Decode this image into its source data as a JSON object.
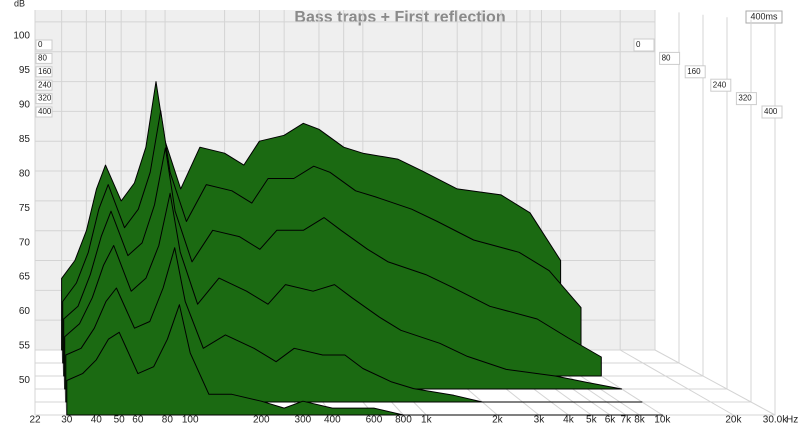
{
  "chart_data": {
    "type": "waterfall",
    "title": "Bass traps + First reflection",
    "y_label": "dB",
    "x_label": "Hz",
    "z_end_label": "400ms",
    "xlim": [
      22,
      30000
    ],
    "ylim": [
      45,
      102
    ],
    "zlim": [
      0,
      400
    ],
    "log_x": true,
    "grid": true,
    "color": "#1b6a12",
    "xticks": [
      22,
      30,
      40,
      50,
      60,
      80,
      100,
      200,
      300,
      400,
      600,
      800,
      {
        "value": 1000,
        "label": "1k"
      },
      {
        "value": 2000,
        "label": "2k"
      },
      {
        "value": 3000,
        "label": "3k"
      },
      {
        "value": 4000,
        "label": "4k"
      },
      {
        "value": 5000,
        "label": "5k"
      },
      {
        "value": 6000,
        "label": "6k"
      },
      {
        "value": 7000,
        "label": "7k"
      },
      {
        "value": 8000,
        "label": "8k"
      },
      {
        "value": 10000,
        "label": "10k"
      },
      {
        "value": 20000,
        "label": "20k"
      },
      {
        "value": 30000,
        "label": "30.0k"
      }
    ],
    "yticks": [
      50,
      55,
      60,
      65,
      70,
      75,
      80,
      85,
      90,
      95,
      100
    ],
    "zticks": [
      0,
      80,
      160,
      240,
      320,
      400
    ],
    "x": [
      30,
      35,
      40,
      45,
      50,
      60,
      70,
      80,
      90,
      100,
      120,
      150,
      200,
      250,
      300,
      400,
      500,
      600,
      800,
      1000,
      1500,
      2000,
      3000,
      5000,
      7000,
      10000
    ],
    "slices": [
      {
        "time": 0,
        "values": [
          57,
          60,
          65,
          72,
          76,
          70,
          73,
          79,
          90,
          80,
          72,
          79,
          78,
          76,
          80,
          81,
          83,
          82,
          79,
          78,
          77,
          75,
          72,
          71,
          68,
          60
        ]
      },
      {
        "time": 80,
        "values": [
          55,
          58,
          63,
          70,
          74,
          67,
          70,
          76,
          86,
          76,
          68,
          74,
          73,
          71,
          75,
          75,
          77,
          76,
          73,
          72,
          70,
          68,
          65,
          63,
          60,
          54
        ]
      },
      {
        "time": 160,
        "values": [
          54,
          56,
          61,
          67,
          71,
          64,
          66,
          72,
          81,
          71,
          63,
          68,
          67,
          65,
          68,
          68,
          70,
          68,
          65,
          63,
          61,
          59,
          56,
          54,
          51,
          48
        ]
      },
      {
        "time": 240,
        "values": [
          53,
          55,
          59,
          64,
          67,
          60,
          62,
          67,
          75,
          66,
          58,
          62,
          60,
          58,
          61,
          60,
          61,
          59,
          56,
          54,
          52,
          50,
          48,
          47,
          46,
          45
        ]
      },
      {
        "time": 320,
        "values": [
          52,
          53,
          56,
          60,
          62,
          56,
          57,
          62,
          68,
          60,
          53,
          55,
          53,
          51,
          53,
          52,
          52,
          50,
          48,
          47,
          46,
          45,
          45,
          45,
          45,
          45
        ]
      },
      {
        "time": 400,
        "values": [
          50,
          51,
          53,
          56,
          57,
          51,
          52,
          56,
          61,
          54,
          48,
          48,
          47,
          46,
          47,
          46,
          46,
          46,
          45,
          45,
          45,
          45,
          45,
          45,
          45,
          45
        ]
      }
    ]
  }
}
